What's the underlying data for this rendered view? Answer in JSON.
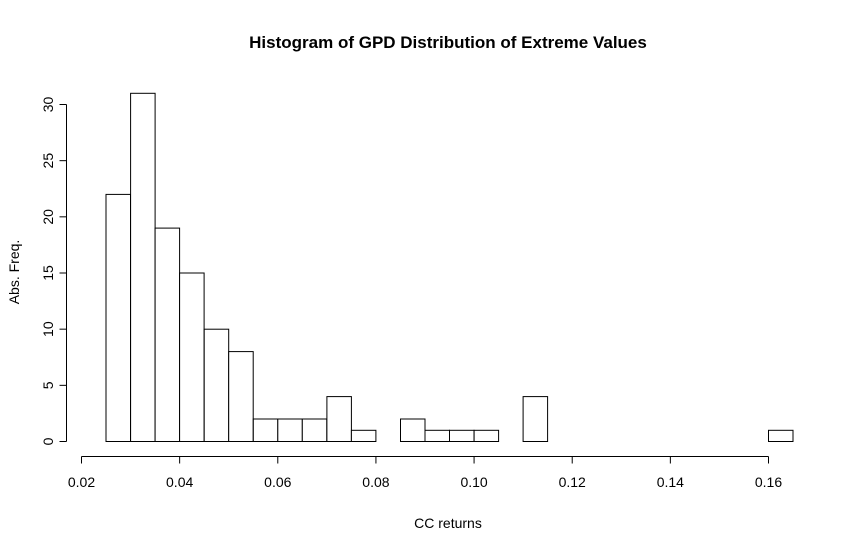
{
  "chart_data": {
    "type": "bar",
    "title": "Histogram of GPD Distribution of Extreme Values",
    "xlabel": "CC returns",
    "ylabel": "Abs. Freq.",
    "bin_edges": [
      0.025,
      0.03,
      0.035,
      0.04,
      0.045,
      0.05,
      0.055,
      0.06,
      0.065,
      0.07,
      0.075,
      0.08,
      0.085,
      0.09,
      0.095,
      0.1,
      0.105,
      0.11,
      0.115,
      0.12,
      0.125,
      0.13,
      0.135,
      0.14,
      0.145,
      0.15,
      0.155,
      0.16,
      0.165
    ],
    "values": [
      22,
      31,
      19,
      15,
      10,
      8,
      2,
      2,
      2,
      4,
      1,
      0,
      2,
      1,
      1,
      1,
      0,
      4,
      0,
      0,
      0,
      0,
      0,
      0,
      0,
      0,
      0,
      1
    ],
    "xlim": [
      0.02,
      0.165
    ],
    "ylim": [
      0,
      31
    ],
    "x_ticks": [
      "0.02",
      "0.04",
      "0.06",
      "0.08",
      "0.10",
      "0.12",
      "0.14",
      "0.16"
    ],
    "y_ticks": [
      "0",
      "5",
      "10",
      "15",
      "20",
      "25",
      "30"
    ],
    "grid": false,
    "legend": "none"
  }
}
